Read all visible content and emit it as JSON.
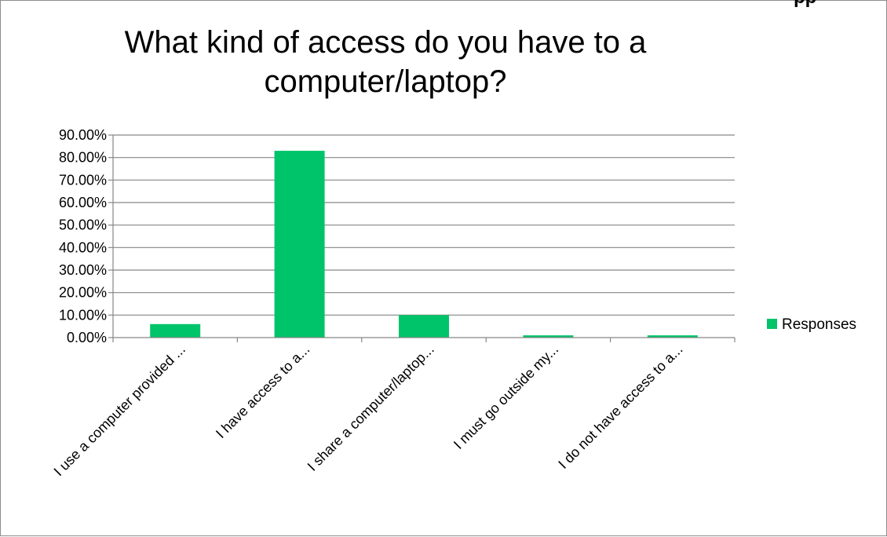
{
  "top_fragment": "pp",
  "chart_data": {
    "type": "bar",
    "title": "What kind of access do you have to a computer/laptop?",
    "xlabel": "",
    "ylabel": "",
    "categories": [
      "I use a computer provided ...",
      "I have access to a...",
      "I share a computer/laptop...",
      "I must go outside my...",
      "I do not have access to a..."
    ],
    "series": [
      {
        "name": "Responses",
        "values": [
          0.06,
          0.83,
          0.1,
          0.01,
          0.01
        ],
        "color": "#00c46a"
      }
    ],
    "ylim": [
      0,
      0.9
    ],
    "yticks": [
      0.0,
      0.1,
      0.2,
      0.3,
      0.4,
      0.5,
      0.6,
      0.7,
      0.8,
      0.9
    ],
    "ytick_labels": [
      "0.00%",
      "10.00%",
      "20.00%",
      "30.00%",
      "40.00%",
      "50.00%",
      "60.00%",
      "70.00%",
      "80.00%",
      "90.00%"
    ],
    "grid": true,
    "legend": "right"
  }
}
